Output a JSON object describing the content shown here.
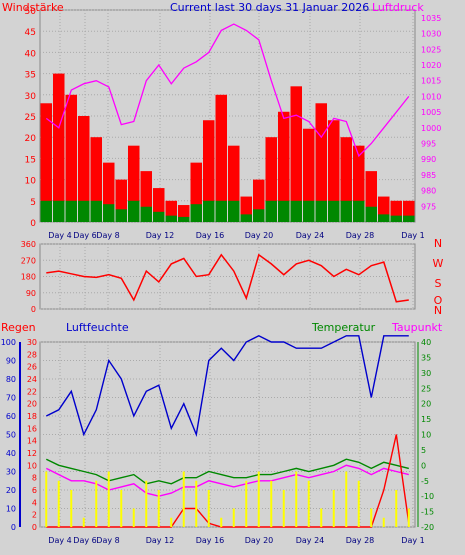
{
  "chart_data": [
    {
      "type": "bar",
      "title": "Current last 30 days 31 Januar 2026",
      "ylabel_left": "Windstärke",
      "ylabel_right": "Luftdruck",
      "x_ticks": [
        "Day 4",
        "Day 6",
        "Day 8",
        "Day 12",
        "Day 16",
        "Day 20",
        "Day 24",
        "Day 28",
        "Day 1"
      ],
      "y_left_ticks": [
        "0",
        "5",
        "10",
        "15",
        "20",
        "25",
        "30",
        "35",
        "40",
        "45",
        "50"
      ],
      "y_right_ticks": [
        "975",
        "980",
        "985",
        "990",
        "995",
        "1000",
        "1005",
        "1010",
        "1015",
        "1020",
        "1025",
        "1030",
        "1035"
      ],
      "ylim_left": [
        0,
        50
      ],
      "ylim_right": [
        970,
        1037.5
      ],
      "series": [
        {
          "name": "Windstärke",
          "color": "#ff0000",
          "values": [
            28,
            35,
            30,
            25,
            20,
            14,
            10,
            18,
            12,
            8,
            5,
            4,
            14,
            24,
            30,
            18,
            6,
            10,
            20,
            26,
            32,
            22,
            28,
            24,
            20,
            18,
            12,
            6,
            5,
            5
          ]
        },
        {
          "name": "Luftdruck",
          "color": "#ff00ff",
          "values": [
            1003,
            1000,
            1012,
            1014,
            1015,
            1013,
            1001,
            1002,
            1015,
            1020,
            1014,
            1019,
            1021,
            1024,
            1031,
            1033,
            1031,
            1028,
            1015,
            1003,
            1004,
            1002,
            997,
            1003,
            1002,
            991,
            995,
            1000,
            1005,
            1010
          ]
        }
      ]
    },
    {
      "type": "line",
      "ylabel_right": [
        "N",
        "W",
        "S",
        "O",
        "N"
      ],
      "y_ticks": [
        "0",
        "90",
        "180",
        "270",
        "360"
      ],
      "ylim": [
        0,
        360
      ],
      "series": [
        {
          "name": "Windrichtung",
          "color": "#ff0000",
          "values": [
            200,
            210,
            195,
            180,
            175,
            190,
            170,
            50,
            210,
            150,
            250,
            280,
            180,
            190,
            300,
            210,
            60,
            300,
            250,
            190,
            250,
            270,
            240,
            180,
            220,
            190,
            240,
            260,
            40,
            50
          ]
        }
      ]
    },
    {
      "type": "line",
      "x_ticks": [
        "Day 4",
        "Day 6",
        "Day 8",
        "Day 12",
        "Day 16",
        "Day 20",
        "Day 24",
        "Day 28",
        "Day 1"
      ],
      "labels": {
        "regen": "Regen",
        "luftfeuchte": "Luftfeuchte",
        "temperatur": "Temperatur",
        "taupunkt": "Taupunkt"
      },
      "y_regen_ticks": [
        "0",
        "10",
        "20",
        "30",
        "40",
        "50",
        "60",
        "70",
        "80",
        "90",
        "100"
      ],
      "y_hum_ticks": [
        "0",
        "2",
        "4",
        "6",
        "8",
        "10",
        "12",
        "14",
        "16",
        "18",
        "20",
        "22",
        "24",
        "26",
        "28",
        "30"
      ],
      "y_temp_ticks": [
        "-20",
        "-15",
        "-10",
        "-5",
        "0",
        "5",
        "10",
        "15",
        "20",
        "25",
        "30",
        "35",
        "40"
      ],
      "ylim_regen": [
        0,
        100
      ],
      "ylim_temp": [
        -20,
        40
      ],
      "series": [
        {
          "name": "Luftfeuchte",
          "color": "#0000cc",
          "values": [
            18,
            19,
            22,
            15,
            19,
            27,
            24,
            18,
            22,
            23,
            16,
            20,
            15,
            27,
            29,
            27,
            30,
            31,
            30,
            30,
            29,
            29,
            29,
            30,
            31,
            31,
            21,
            31,
            31,
            31
          ]
        },
        {
          "name": "Temperatur",
          "color": "#008800",
          "values": [
            2,
            0,
            -1,
            -2,
            -3,
            -5,
            -4,
            -3,
            -6,
            -5,
            -6,
            -4,
            -4,
            -2,
            -3,
            -4,
            -4,
            -3,
            -3,
            -2,
            -1,
            -2,
            -1,
            0,
            2,
            1,
            -1,
            1,
            0,
            -1
          ]
        },
        {
          "name": "Taupunkt",
          "color": "#ff00ff",
          "values": [
            -1,
            -3,
            -5,
            -5,
            -6,
            -8,
            -7,
            -6,
            -9,
            -10,
            -9,
            -7,
            -7,
            -5,
            -6,
            -7,
            -6,
            -5,
            -5,
            -4,
            -3,
            -4,
            -3,
            -2,
            0,
            -1,
            -3,
            -1,
            -2,
            -3
          ]
        },
        {
          "name": "Regen",
          "color": "#ff0000",
          "values": [
            0,
            0,
            0,
            0,
            0,
            0,
            0,
            0,
            0,
            0,
            0,
            10,
            10,
            2,
            0,
            0,
            0,
            0,
            0,
            0,
            0,
            0,
            0,
            0,
            0,
            0,
            0,
            20,
            50,
            2
          ]
        },
        {
          "name": "Regenrate",
          "color": "#ffff00",
          "values": [
            30,
            25,
            20,
            5,
            25,
            30,
            20,
            10,
            25,
            20,
            5,
            30,
            25,
            20,
            5,
            10,
            25,
            30,
            25,
            20,
            30,
            25,
            10,
            20,
            30,
            25,
            10,
            5,
            20,
            10
          ]
        }
      ]
    }
  ]
}
